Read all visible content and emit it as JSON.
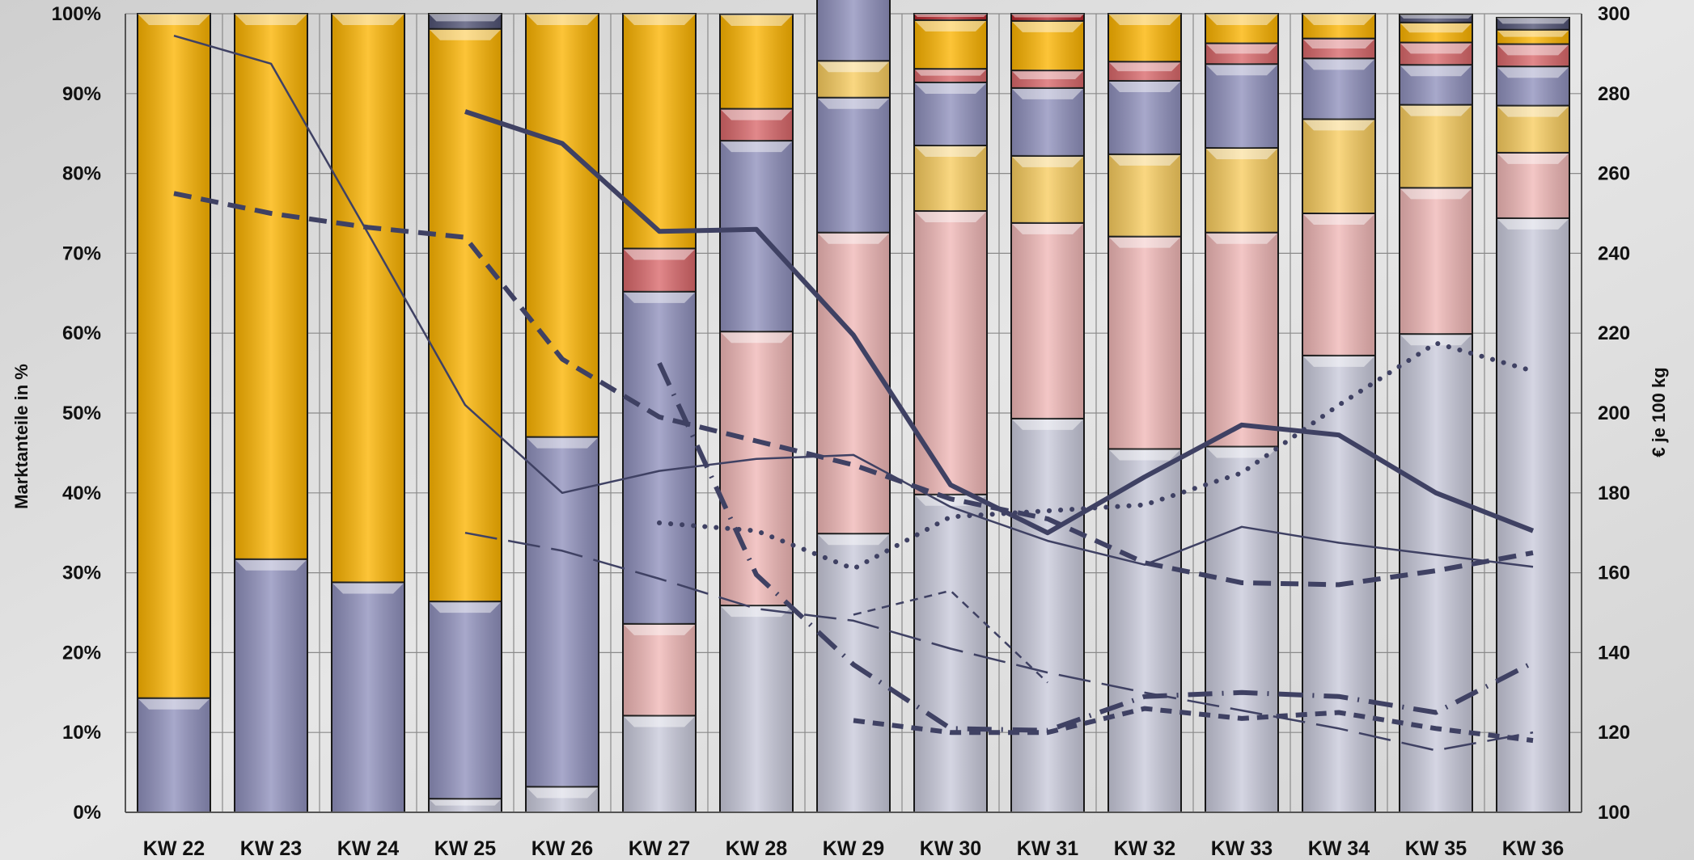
{
  "chart_data": {
    "type": "bar",
    "stacked": true,
    "categories": [
      "KW 22",
      "KW 23",
      "KW 24",
      "KW 25",
      "KW 26",
      "KW 27",
      "KW 28",
      "KW 29",
      "KW 30",
      "KW 31",
      "KW 32",
      "KW 33",
      "KW 34",
      "KW 35",
      "KW 36"
    ],
    "ylabel": "Marktanteile in %",
    "y2label": "€ je 100 kg",
    "ylim": [
      0,
      100
    ],
    "y2lim": [
      100,
      300
    ],
    "yticks": [
      "0%",
      "10%",
      "20%",
      "30%",
      "40%",
      "50%",
      "60%",
      "70%",
      "80%",
      "90%",
      "100%"
    ],
    "y2ticks": [
      "100",
      "120",
      "140",
      "160",
      "180",
      "200",
      "220",
      "240",
      "260",
      "280",
      "300"
    ],
    "grid": true,
    "bar_series": [
      {
        "color": "#c9cadb",
        "values": [
          0,
          0,
          0,
          1.7,
          3.2,
          12.1,
          25.9,
          34.9,
          39.8,
          49.3,
          45.5,
          45.8,
          57.2,
          59.9,
          74.4
        ]
      },
      {
        "color": "#f0b7b6",
        "values": [
          0,
          0,
          0,
          0,
          0,
          11.5,
          34.3,
          37.7,
          35.5,
          24.5,
          26.6,
          26.8,
          17.8,
          18.3,
          8.2
        ]
      },
      {
        "color": "#8f90bc",
        "values": [
          14.3,
          31.7,
          28.8,
          24.7,
          43.8,
          41.6,
          23.9,
          16.9,
          0,
          0,
          0,
          0,
          0,
          0,
          0
        ]
      },
      {
        "color": "#f8cc5e",
        "values": [
          0,
          0,
          0,
          0,
          0,
          0,
          0,
          4.6,
          8.2,
          8.4,
          10.3,
          10.6,
          11.8,
          10.4,
          5.9
        ]
      },
      {
        "color": "#8f90bc",
        "values": [
          0,
          0,
          0,
          0,
          0,
          0,
          0,
          11.8,
          7.9,
          8.5,
          9.2,
          10.5,
          7.6,
          5.0,
          4.9
        ]
      },
      {
        "color": "#d9676a",
        "values": [
          0,
          0,
          0,
          0,
          0,
          5.4,
          4.0,
          3.5,
          1.7,
          2.2,
          2.4,
          2.6,
          2.5,
          2.8,
          2.8
        ]
      },
      {
        "color": "#fcb400",
        "values": [
          85.7,
          68.3,
          71.2,
          71.7,
          53.0,
          29.4,
          11.8,
          5.6,
          6.1,
          6.2,
          6.0,
          3.7,
          3.1,
          2.5,
          1.8
        ]
      },
      {
        "color": "#505274",
        "values": [
          0,
          0,
          0,
          1.9,
          0,
          0,
          0,
          0.5,
          0,
          0,
          0,
          0,
          0,
          1.0,
          1.5
        ]
      },
      {
        "color": "#b8262c",
        "values": [
          0,
          0,
          0,
          0,
          0,
          0,
          0,
          0,
          0.8,
          0.9,
          0,
          0,
          0,
          0,
          0
        ]
      }
    ],
    "line_series": [
      {
        "style": "thin-solid",
        "x": [
          0,
          1,
          2,
          3,
          4,
          5,
          6,
          7,
          8,
          9,
          10,
          11,
          12,
          13,
          14
        ],
        "values": [
          294.5,
          287.5,
          245,
          202,
          180,
          185.5,
          188.5,
          189.5,
          176.5,
          168,
          162,
          171.5,
          167.5,
          164.5,
          161.5
        ]
      },
      {
        "style": "thick-solid",
        "x": [
          3,
          4,
          5,
          6,
          7,
          8,
          9,
          10,
          11,
          12,
          13,
          14
        ],
        "values": [
          275.5,
          267.5,
          245.5,
          246,
          219.5,
          182,
          170,
          184,
          197,
          194.5,
          180,
          170.5
        ]
      },
      {
        "style": "thick-dashed",
        "x": [
          0,
          1,
          2,
          3,
          4,
          5,
          6,
          7,
          8,
          9,
          10,
          11,
          12,
          13,
          14
        ],
        "values": [
          255,
          250,
          246.5,
          244,
          213.5,
          199,
          193,
          187,
          178.5,
          173.5,
          162.5,
          157.5,
          157,
          160.5,
          165
        ]
      },
      {
        "style": "thin-long-dash",
        "x": [
          3,
          4,
          5,
          6,
          7,
          8,
          9,
          10,
          11,
          12,
          13,
          14
        ],
        "values": [
          170,
          165.5,
          158.5,
          151,
          148,
          141,
          135,
          130,
          125.5,
          121,
          115.5,
          120
        ]
      },
      {
        "style": "dotted",
        "x": [
          5,
          6,
          7,
          8,
          9,
          10,
          11,
          12,
          13,
          14
        ],
        "values": [
          172.5,
          170.5,
          161,
          174,
          175.5,
          177,
          185,
          202,
          217.5,
          210.5
        ]
      },
      {
        "style": "dash-dot",
        "x": [
          5,
          6,
          7,
          8,
          9,
          10,
          11,
          12,
          13,
          14
        ],
        "values": [
          212.5,
          159.5,
          137,
          121,
          120.5,
          129,
          130,
          129,
          125,
          137.5
        ]
      },
      {
        "style": "short-dashed",
        "x": [
          7,
          8,
          9
        ],
        "values": [
          149.5,
          155.5,
          132.5
        ]
      },
      {
        "style": "thick-medium-dashed",
        "x": [
          7,
          8,
          9,
          10,
          11,
          12,
          13,
          14
        ],
        "values": [
          123,
          120,
          120,
          126,
          123.5,
          125,
          121,
          118
        ]
      }
    ]
  }
}
